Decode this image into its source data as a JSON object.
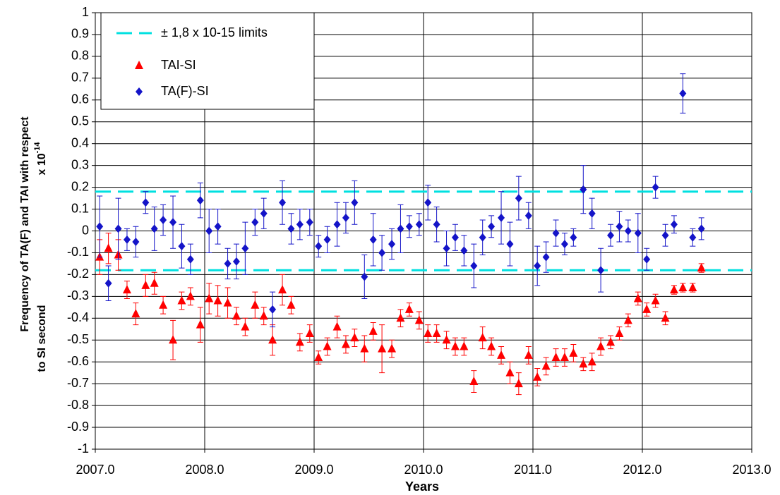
{
  "chart_data": {
    "type": "scatter",
    "y_label": [
      "Frequency of TA(F) and TAI with respect",
      "to SI second"
    ],
    "y_unit": "x 10",
    "y_unit_exponent": "-14",
    "x_label": "Years",
    "xlim": [
      2007,
      2013
    ],
    "xticks": [
      {
        "value": 2007,
        "label": "2007.0"
      },
      {
        "value": 2008,
        "label": "2008.0"
      },
      {
        "value": 2009,
        "label": "2009.0"
      },
      {
        "value": 2010,
        "label": "2010.0"
      },
      {
        "value": 2011,
        "label": "2011.0"
      },
      {
        "value": 2012,
        "label": "2012.0"
      },
      {
        "value": 2013,
        "label": "2013.0"
      }
    ],
    "ylim": [
      -1,
      1
    ],
    "yticks": [
      1,
      0.9,
      0.8,
      0.7,
      0.6,
      0.5,
      0.4,
      0.3,
      0.2,
      0.1,
      0,
      -0.1,
      -0.2,
      -0.3,
      -0.4,
      -0.5,
      -0.6,
      -0.7,
      -0.8,
      -0.9,
      -1
    ],
    "grid": true,
    "legend": "upper left",
    "limits": {
      "name": "± 1,8 x 10-15 limits",
      "color": "#00e0e0",
      "values": [
        0.18,
        -0.18
      ]
    },
    "x": [
      2007.04,
      2007.12,
      2007.21,
      2007.29,
      2007.37,
      2007.46,
      2007.54,
      2007.62,
      2007.71,
      2007.79,
      2007.87,
      2007.96,
      2008.04,
      2008.12,
      2008.21,
      2008.29,
      2008.37,
      2008.46,
      2008.54,
      2008.62,
      2008.71,
      2008.79,
      2008.87,
      2008.96,
      2009.04,
      2009.12,
      2009.21,
      2009.29,
      2009.37,
      2009.46,
      2009.54,
      2009.62,
      2009.71,
      2009.79,
      2009.87,
      2009.96,
      2010.04,
      2010.12,
      2010.21,
      2010.29,
      2010.37,
      2010.46,
      2010.54,
      2010.62,
      2010.71,
      2010.79,
      2010.87,
      2010.96,
      2011.04,
      2011.12,
      2011.21,
      2011.29,
      2011.37,
      2011.46,
      2011.54,
      2011.62,
      2011.71,
      2011.79,
      2011.87,
      2011.96,
      2012.04,
      2012.12,
      2012.21,
      2012.29,
      2012.37,
      2012.46,
      2012.54
    ],
    "series": [
      {
        "name": "TAI-SI",
        "color": "#ff0000",
        "marker": "triangle",
        "values": [
          -0.12,
          -0.08,
          -0.11,
          -0.27,
          -0.38,
          -0.25,
          -0.24,
          -0.34,
          -0.5,
          -0.32,
          -0.3,
          -0.43,
          -0.31,
          -0.32,
          -0.33,
          -0.39,
          -0.44,
          -0.34,
          -0.39,
          -0.5,
          -0.27,
          -0.34,
          -0.51,
          -0.47,
          -0.58,
          -0.53,
          -0.44,
          -0.52,
          -0.49,
          -0.54,
          -0.46,
          -0.54,
          -0.54,
          -0.4,
          -0.36,
          -0.41,
          -0.47,
          -0.47,
          -0.5,
          -0.53,
          -0.53,
          -0.69,
          -0.49,
          -0.53,
          -0.57,
          -0.65,
          -0.7,
          -0.57,
          -0.67,
          -0.62,
          -0.58,
          -0.58,
          -0.56,
          -0.61,
          -0.6,
          -0.53,
          -0.51,
          -0.47,
          -0.41,
          -0.31,
          -0.36,
          -0.32,
          -0.4,
          -0.27,
          -0.26,
          -0.26,
          -0.17
        ],
        "errors": [
          0.08,
          0.07,
          0.07,
          0.04,
          0.05,
          0.05,
          0.05,
          0.04,
          0.09,
          0.04,
          0.04,
          0.08,
          0.07,
          0.07,
          0.07,
          0.04,
          0.04,
          0.06,
          0.04,
          0.07,
          0.07,
          0.04,
          0.04,
          0.04,
          0.03,
          0.04,
          0.05,
          0.04,
          0.04,
          0.06,
          0.04,
          0.11,
          0.04,
          0.04,
          0.03,
          0.04,
          0.04,
          0.04,
          0.04,
          0.04,
          0.04,
          0.05,
          0.05,
          0.04,
          0.04,
          0.05,
          0.05,
          0.04,
          0.04,
          0.04,
          0.04,
          0.04,
          0.04,
          0.03,
          0.04,
          0.04,
          0.03,
          0.03,
          0.03,
          0.03,
          0.03,
          0.03,
          0.03,
          0.02,
          0.02,
          0.02,
          0.02
        ]
      },
      {
        "name": "TA(F)-SI",
        "color": "#1414c8",
        "marker": "diamond",
        "values": [
          0.02,
          -0.24,
          0.01,
          -0.04,
          -0.05,
          0.13,
          0.01,
          0.05,
          0.04,
          -0.07,
          -0.13,
          0.14,
          0,
          0.02,
          -0.15,
          -0.14,
          -0.08,
          0.04,
          0.08,
          -0.36,
          0.13,
          0.01,
          0.03,
          0.04,
          -0.07,
          -0.04,
          0.03,
          0.06,
          0.13,
          -0.21,
          -0.04,
          -0.1,
          -0.06,
          0.01,
          0.02,
          0.03,
          0.13,
          0.03,
          -0.08,
          -0.03,
          -0.09,
          -0.16,
          -0.03,
          0.02,
          0.06,
          -0.06,
          0.15,
          0.07,
          -0.16,
          -0.12,
          -0.01,
          -0.06,
          -0.03,
          0.19,
          0.08,
          -0.18,
          -0.02,
          0.02,
          0,
          -0.01,
          -0.13,
          0.2,
          -0.02,
          0.03,
          0.63,
          -0.03,
          0.01
        ],
        "errors": [
          0.14,
          0.08,
          0.14,
          0.05,
          0.07,
          0.05,
          0.1,
          0.07,
          0.12,
          0.1,
          0.07,
          0.08,
          0.1,
          0.08,
          0.07,
          0.08,
          0.12,
          0.06,
          0.07,
          0.08,
          0.1,
          0.07,
          0.07,
          0.06,
          0.05,
          0.06,
          0.1,
          0.07,
          0.1,
          0.1,
          0.12,
          0.08,
          0.07,
          0.11,
          0.05,
          0.05,
          0.08,
          0.08,
          0.08,
          0.06,
          0.07,
          0.1,
          0.08,
          0.05,
          0.12,
          0.1,
          0.1,
          0.06,
          0.09,
          0.07,
          0.06,
          0.05,
          0.04,
          0.11,
          0.07,
          0.1,
          0.05,
          0.07,
          0.05,
          0.09,
          0.05,
          0.05,
          0.05,
          0.04,
          0.09,
          0.04,
          0.05
        ]
      }
    ]
  }
}
